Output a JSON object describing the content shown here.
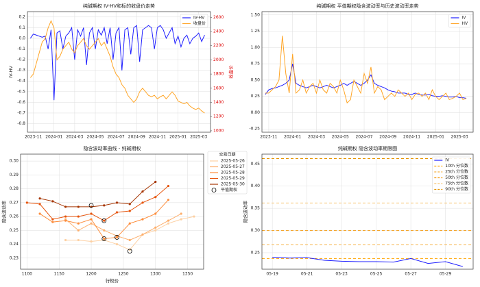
{
  "chart_data": [
    {
      "type": "line",
      "title": "纯碱期权 IV-HV和标的收盘价走势",
      "ylabel": "IV-HV",
      "y2label": "收盘价",
      "legend": "upper right",
      "grid": true,
      "xlim": [
        -1,
        61
      ],
      "xticks": [
        {
          "value": 1,
          "label": "2023-11"
        },
        {
          "value": 8,
          "label": "2024-01"
        },
        {
          "value": 15,
          "label": "2024-03"
        },
        {
          "value": 22,
          "label": "2024-05"
        },
        {
          "value": 29,
          "label": "2024-07"
        },
        {
          "value": 36,
          "label": "2024-09"
        },
        {
          "value": 43,
          "label": "2024-11"
        },
        {
          "value": 50,
          "label": "2025-01"
        },
        {
          "value": 57,
          "label": "2025-03"
        }
      ],
      "ylim": [
        -0.88,
        0.25
      ],
      "yticks": [
        0.2,
        0.1,
        {
          "value": 0,
          "label": "0.0"
        },
        -0.1,
        -0.2,
        -0.3,
        -0.4,
        -0.5,
        -0.6,
        -0.7,
        -0.8
      ],
      "y2lim": [
        980,
        2680
      ],
      "y2ticks": [
        1000,
        1200,
        1400,
        1600,
        1800,
        2000,
        2200,
        2400,
        2600
      ],
      "series": [
        {
          "name": "IV-HV",
          "color": "#1f1fff",
          "values": [
            0.0,
            0.04,
            0.03,
            0.02,
            0.01,
            0.02,
            -0.1,
            0.08,
            -0.58,
            0.05,
            0.07,
            -0.1,
            0.02,
            0.05,
            0.1,
            -0.2,
            0.08,
            0.02,
            0.1,
            -0.25,
            0.05,
            0.1,
            -0.1,
            0.08,
            0.03,
            0.1,
            -0.05,
            0.1,
            -0.2,
            0.05,
            0.1,
            -0.3,
            0.08,
            0.1,
            -0.15,
            0.1,
            0.12,
            -0.22,
            0.08,
            0.1,
            0.12,
            0.1,
            -0.1,
            0.1,
            0.12,
            0.08,
            0.0,
            0.05,
            0.1,
            -0.05,
            0.02,
            -0.08,
            0.0,
            0.03,
            -0.05,
            0.0,
            0.02,
            0.05,
            -0.03,
            0.03
          ]
        },
        {
          "name": "收盘价",
          "color": "#ffa526",
          "axis": "y2",
          "values": [
            1750,
            1800,
            1950,
            2100,
            2250,
            2300,
            2450,
            2550,
            2450,
            2000,
            2050,
            2150,
            2200,
            2250,
            2150,
            2100,
            2200,
            2250,
            2300,
            2200,
            2150,
            2200,
            2250,
            2300,
            2200,
            2250,
            2150,
            2050,
            1900,
            1800,
            1750,
            1650,
            1600,
            1500,
            1450,
            1400,
            1450,
            1550,
            1600,
            1550,
            1500,
            1480,
            1500,
            1450,
            1480,
            1500,
            1450,
            1500,
            1550,
            1500,
            1420,
            1400,
            1380,
            1400,
            1350,
            1320,
            1300,
            1320,
            1280,
            1250
          ]
        }
      ]
    },
    {
      "type": "line",
      "title": "纯碱期权 平值期权隐含波动率与历史波动率走势",
      "legend": "upper right",
      "grid": true,
      "xlim": [
        -1,
        61
      ],
      "xticks": [
        {
          "value": 1,
          "label": "2023-11"
        },
        {
          "value": 8,
          "label": "2024-01"
        },
        {
          "value": 15,
          "label": "2024-03"
        },
        {
          "value": 22,
          "label": "2024-05"
        },
        {
          "value": 29,
          "label": "2024-07"
        },
        {
          "value": 36,
          "label": "2024-09"
        },
        {
          "value": 43,
          "label": "2024-11"
        },
        {
          "value": 50,
          "label": "2025-01"
        },
        {
          "value": 57,
          "label": "2025-03"
        }
      ],
      "ylim": [
        -0.3,
        1.55
      ],
      "yticks": [
        -0.25,
        {
          "value": 0,
          "label": "0.00"
        },
        0.25,
        {
          "value": 0.5,
          "label": "0.50"
        },
        0.75,
        {
          "value": 1,
          "label": "1.00"
        },
        1.25,
        {
          "value": 1.5,
          "label": "1.50"
        }
      ],
      "series": [
        {
          "name": "IV",
          "color": "#1f1fff",
          "values": [
            0.28,
            0.35,
            0.37,
            0.38,
            0.4,
            0.42,
            0.45,
            0.5,
            0.75,
            0.45,
            0.42,
            0.4,
            0.38,
            0.4,
            0.42,
            0.4,
            0.38,
            0.4,
            0.42,
            0.4,
            0.38,
            0.4,
            0.42,
            0.45,
            0.42,
            0.45,
            0.48,
            0.45,
            0.42,
            0.45,
            0.5,
            0.58,
            0.45,
            0.42,
            0.4,
            0.38,
            0.35,
            0.33,
            0.32,
            0.3,
            0.3,
            0.3,
            0.28,
            0.28,
            0.3,
            0.28,
            0.27,
            0.27,
            0.28,
            0.26,
            0.25,
            0.25,
            0.26,
            0.25,
            0.24,
            0.24,
            0.25,
            0.23,
            0.23,
            0.22
          ]
        },
        {
          "name": "HV",
          "color": "#ffa526",
          "values": [
            0.3,
            0.3,
            0.35,
            0.4,
            0.5,
            1.18,
            0.6,
            0.3,
            0.9,
            0.3,
            0.35,
            0.5,
            0.3,
            0.4,
            0.45,
            0.3,
            0.5,
            0.35,
            0.3,
            0.45,
            0.4,
            0.3,
            0.5,
            0.35,
            0.15,
            0.2,
            0.5,
            0.4,
            0.3,
            0.6,
            0.45,
            0.7,
            0.3,
            0.4,
            0.35,
            0.2,
            0.25,
            0.3,
            0.25,
            0.35,
            0.3,
            0.25,
            0.3,
            0.2,
            0.28,
            0.3,
            0.25,
            0.3,
            0.2,
            0.35,
            0.25,
            0.2,
            0.25,
            0.3,
            0.2,
            0.22,
            0.25,
            0.3,
            0.2,
            0.22
          ]
        }
      ]
    },
    {
      "type": "line",
      "title": "隐含波动率曲线 - 纯碱期权",
      "xlabel": "行权价",
      "ylabel": "隐含波动率",
      "legend": "outside right",
      "legend_title": "交易日期",
      "grid": true,
      "markers": true,
      "xlim": [
        1090,
        1375
      ],
      "xticks": [
        1100,
        1150,
        1200,
        1250,
        1300,
        1350
      ],
      "ylim": [
        0.222,
        0.305
      ],
      "yticks": [
        0.23,
        0.24,
        0.25,
        0.26,
        0.27,
        0.28,
        0.29,
        {
          "value": 0.3,
          "label": "0.30"
        }
      ],
      "series": [
        {
          "name": "2025-05-26",
          "color": "#fdd0a2",
          "x": [
            1160,
            1180,
            1200,
            1220,
            1240,
            1260,
            1280,
            1300,
            1320,
            1340,
            1360
          ],
          "values": [
            0.243,
            0.243,
            0.242,
            0.243,
            0.24,
            0.236,
            0.247,
            0.25,
            0.255,
            0.258,
            0.26
          ]
        },
        {
          "name": "2025-05-27",
          "color": "#fdae6b",
          "x": [
            1160,
            1180,
            1200,
            1220,
            1240,
            1260,
            1280,
            1300,
            1320,
            1340
          ],
          "values": [
            0.258,
            0.25,
            0.255,
            0.25,
            0.246,
            0.243,
            0.247,
            0.252,
            0.257,
            0.262
          ]
        },
        {
          "name": "2025-05-28",
          "color": "#fd8d3c",
          "x": [
            1120,
            1140,
            1160,
            1180,
            1200,
            1220,
            1240,
            1260,
            1280,
            1300,
            1320
          ],
          "values": [
            0.262,
            0.256,
            0.257,
            0.255,
            0.258,
            0.244,
            0.245,
            0.255,
            0.258,
            0.262,
            0.272
          ]
        },
        {
          "name": "2025-05-29",
          "color": "#e6550d",
          "x": [
            1100,
            1120,
            1140,
            1160,
            1180,
            1200,
            1220,
            1240,
            1260,
            1280,
            1300,
            1320
          ],
          "values": [
            0.27,
            0.269,
            0.258,
            0.26,
            0.26,
            0.262,
            0.257,
            0.263,
            0.264,
            0.27,
            0.274,
            0.282
          ]
        },
        {
          "name": "2025-05-30",
          "color": "#a63603",
          "x": [
            1120,
            1140,
            1160,
            1180,
            1200,
            1220,
            1240,
            1260,
            1280,
            1300
          ],
          "values": [
            0.273,
            0.271,
            0.267,
            0.267,
            0.267,
            0.268,
            0.27,
            0.269,
            0.278,
            0.285
          ]
        }
      ],
      "atm": {
        "name": "平值期权",
        "x": [
          1260,
          1240,
          1220,
          1220,
          1200
        ],
        "values": [
          0.235,
          0.245,
          0.244,
          0.257,
          0.268
        ]
      }
    },
    {
      "type": "line",
      "title": "纯碱期权 隐含波动率期限图",
      "ylabel": "隐含波动率",
      "legend": "upper right",
      "grid": true,
      "categories": [
        "05-19",
        null,
        "05-21",
        null,
        "05-23",
        null,
        "05-25",
        null,
        "05-27",
        null,
        "05-29",
        null
      ],
      "ylim": [
        0.213,
        0.472
      ],
      "yticks": [
        0.25,
        {
          "value": 0.3,
          "label": "0.30"
        },
        0.35,
        {
          "value": 0.4,
          "label": "0.40"
        },
        0.45
      ],
      "series": [
        {
          "name": "IV",
          "color": "#1f1fff",
          "values": [
            0.24,
            0.238,
            0.239,
            0.233,
            0.231,
            0.23,
            0.23,
            0.229,
            0.237,
            0.226,
            0.23,
            0.219
          ]
        }
      ],
      "hlines": [
        {
          "name": "10th 分位数",
          "value": 0.237,
          "color": "#ffa500"
        },
        {
          "name": "25th 分位数",
          "value": 0.268,
          "color": "#f5b041"
        },
        {
          "name": "50th 分位数",
          "value": 0.3,
          "color": "#f39c12"
        },
        {
          "name": "75th 分位数",
          "value": 0.362,
          "color": "#f8c471"
        },
        {
          "name": "90th 分位数",
          "value": 0.462,
          "color": "#e59400"
        }
      ]
    }
  ]
}
